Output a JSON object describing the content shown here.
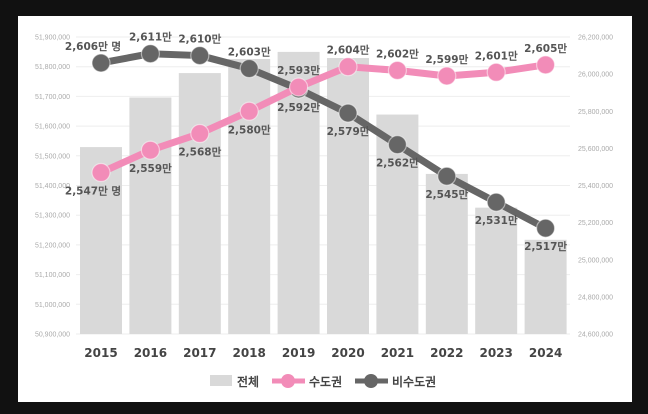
{
  "chart_data": {
    "type": "bar+line",
    "categories": [
      "2015",
      "2016",
      "2017",
      "2018",
      "2019",
      "2020",
      "2021",
      "2022",
      "2023",
      "2024"
    ],
    "left_axis": {
      "ylim": [
        50900000,
        51900000
      ],
      "ticks": [
        "50,900,000",
        "51,000,000",
        "51,100,000",
        "51,200,000",
        "51,300,000",
        "51,400,000",
        "51,500,000",
        "51,600,000",
        "51,700,000",
        "51,800,000",
        "51,900,000"
      ]
    },
    "right_axis": {
      "ylim": [
        24600000,
        26200000
      ],
      "ticks": [
        "24,600,000",
        "24,800,000",
        "25,000,000",
        "25,200,000",
        "25,400,000",
        "25,600,000",
        "25,800,000",
        "26,000,000",
        "26,200,000"
      ]
    },
    "grid": true,
    "legend_position": "bottom",
    "series": [
      {
        "name": "전체",
        "type": "bar",
        "axis": "left",
        "color": "#d9d9d9",
        "values": [
          51529338,
          51696216,
          51778544,
          51826059,
          51849861,
          51829136,
          51638809,
          51439038,
          51325329,
          51217221
        ]
      },
      {
        "name": "수도권",
        "type": "line",
        "axis": "right",
        "color": "#f28cb8",
        "values": [
          25470000,
          25590000,
          25680000,
          25800000,
          25930000,
          26040000,
          26020000,
          25990000,
          26010000,
          26050000
        ],
        "labels": [
          "2,547만 명",
          "2,559만",
          "2,568만",
          "2,580만",
          "2,593만",
          "2,604만",
          "2,602만",
          "2,599만",
          "2,601만",
          "2,605만"
        ]
      },
      {
        "name": "비수도권",
        "type": "line",
        "axis": "right",
        "color": "#666666",
        "values": [
          26060000,
          26110000,
          26100000,
          26030000,
          25920000,
          25790000,
          25620000,
          25450000,
          25310000,
          25170000
        ],
        "labels": [
          "2,606만 명",
          "2,611만",
          "2,610만",
          "2,603만",
          "2,592만",
          "2,579만",
          "2,562만",
          "2,545만",
          "2,531만",
          "2,517만"
        ]
      }
    ]
  }
}
